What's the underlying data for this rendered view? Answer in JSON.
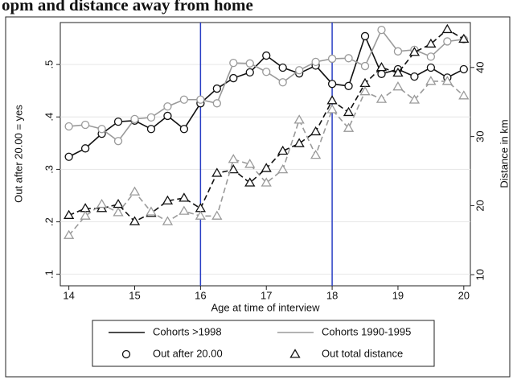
{
  "chart_data": {
    "type": "line",
    "title": "opm and distance away from home",
    "xlabel": "Age at time of interview",
    "ylabel": "Out after 20.00 = yes",
    "y2label": "Distance in km",
    "x": [
      14,
      14.25,
      14.5,
      14.75,
      15,
      15.25,
      15.5,
      15.75,
      16,
      16.25,
      16.5,
      16.75,
      17,
      17.25,
      17.5,
      17.75,
      18,
      18.25,
      18.5,
      18.75,
      19,
      19.25,
      19.5,
      19.75,
      20
    ],
    "xlim": [
      13.87,
      20.1
    ],
    "xticks": [
      14,
      15,
      16,
      17,
      18,
      19,
      20
    ],
    "ylim": [
      0.078,
      0.58
    ],
    "yticks": [
      {
        "value": 0.1,
        "label": ".1"
      },
      {
        "value": 0.2,
        "label": ".2"
      },
      {
        "value": 0.3,
        "label": ".3"
      },
      {
        "value": 0.4,
        "label": ".4"
      },
      {
        "value": 0.5,
        "label": ".5"
      }
    ],
    "y2lim": [
      8.4,
      46.5
    ],
    "y2ticks": [
      10,
      20,
      30,
      40
    ],
    "grid": true,
    "vlines": [
      16,
      18
    ],
    "vline_color": "#2a3fc4",
    "series": [
      {
        "color": "#111111",
        "marker": "circle",
        "dash": false,
        "values": [
          0.324,
          0.34,
          0.368,
          0.391,
          0.393,
          0.377,
          0.402,
          0.377,
          0.426,
          0.454,
          0.474,
          0.485,
          0.517,
          0.494,
          0.483,
          0.498,
          0.463,
          0.459,
          0.554,
          0.482,
          0.491,
          0.477,
          0.494,
          0.475,
          0.491
        ]
      },
      {
        "color": "#9a9a9a",
        "marker": "circle",
        "dash": false,
        "values": [
          0.382,
          0.385,
          0.377,
          0.354,
          0.396,
          0.399,
          0.42,
          0.433,
          0.433,
          0.426,
          0.503,
          0.502,
          0.486,
          0.466,
          0.489,
          0.505,
          0.511,
          0.512,
          0.497,
          0.566,
          0.525,
          0.528,
          0.515,
          0.544,
          0.548
        ]
      },
      {
        "color": "#111111",
        "marker": "triangle",
        "dash": true,
        "axis": "y2",
        "values": [
          18.6,
          19.6,
          19.6,
          20.2,
          17.7,
          18.9,
          20.7,
          21.1,
          19.6,
          24.7,
          25.2,
          23.3,
          25.4,
          27.9,
          29.0,
          30.7,
          35.2,
          33.5,
          37.7,
          40.0,
          39.2,
          42.2,
          43.4,
          45.5,
          44.1
        ]
      },
      {
        "color": "#9a9a9a",
        "marker": "triangle",
        "dash": true,
        "axis": "y2",
        "values": [
          15.7,
          18.5,
          20.2,
          19.0,
          22.0,
          19.1,
          17.7,
          19.2,
          18.5,
          18.5,
          26.7,
          26.0,
          23.3,
          25.2,
          32.4,
          27.3,
          33.9,
          31.2,
          36.5,
          35.4,
          37.2,
          35.3,
          38.0,
          38.0,
          35.9
        ]
      }
    ],
    "legend": {
      "lines": [
        {
          "label": "Cohorts >1998",
          "color": "#111111"
        },
        {
          "label": "Cohorts 1990-1995",
          "color": "#9a9a9a"
        }
      ],
      "markers": [
        {
          "label": "Out after 20.00",
          "marker": "circle"
        },
        {
          "label": "Out total distance",
          "marker": "triangle"
        }
      ]
    }
  }
}
